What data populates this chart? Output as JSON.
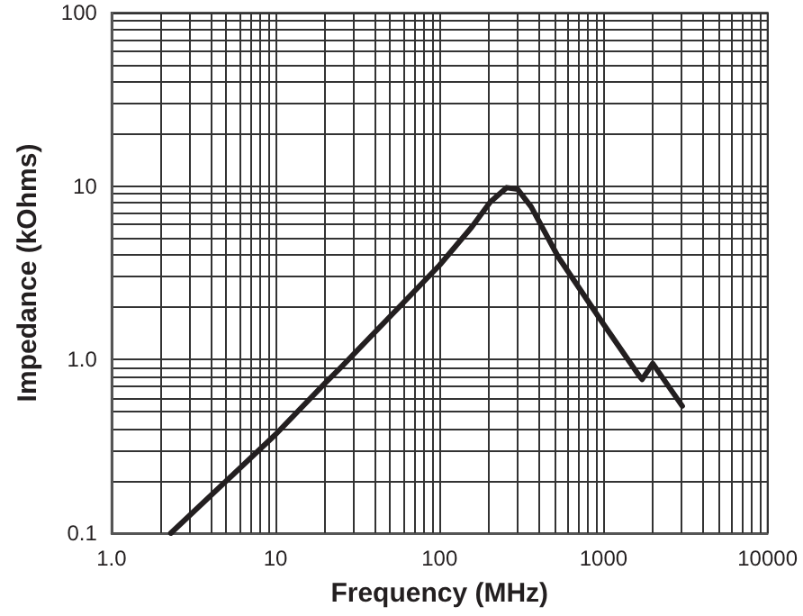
{
  "chart_data": {
    "type": "line",
    "xlabel": "Frequency (MHz)",
    "ylabel": "Impedance (kOhms)",
    "x": [
      2.3,
      10,
      20,
      25,
      100,
      157,
      204,
      257,
      299,
      362,
      530,
      1000,
      1660,
      1720,
      1995,
      3020
    ],
    "series": [
      {
        "color": "#231f20",
        "values": [
          0.1,
          0.37,
          0.73,
          0.9,
          3.5,
          5.8,
          8.1,
          9.8,
          9.6,
          7.6,
          3.9,
          1.6,
          0.8,
          0.77,
          0.95,
          0.54
        ]
      }
    ],
    "log": "xy",
    "xlim": [
      1,
      10000
    ],
    "ylim": [
      0.1,
      100
    ],
    "xticks": [
      {
        "value": 1,
        "label": "1.0"
      },
      10,
      100,
      1000,
      10000
    ],
    "yticks": [
      0.1,
      {
        "value": 1,
        "label": "1.0"
      },
      10,
      100
    ],
    "grid": true,
    "marker": "none",
    "line_style": "solid"
  }
}
